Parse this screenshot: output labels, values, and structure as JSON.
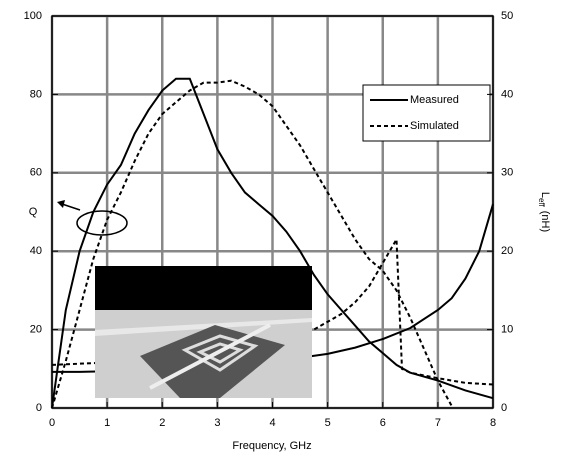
{
  "chart_data": {
    "type": "line",
    "xlabel": "Frequency, GHz",
    "ylabel": "Q",
    "y2label": {
      "main": "L",
      "sub": "eff",
      "unit": "(nH)"
    },
    "xlim": [
      0,
      8
    ],
    "xticks": [
      0,
      1,
      2,
      3,
      4,
      5,
      6,
      7,
      8
    ],
    "ylim": [
      0,
      100
    ],
    "yticks": [
      0,
      20,
      40,
      60,
      80,
      100
    ],
    "y2lim": [
      0,
      50
    ],
    "y2ticks": [
      0,
      10,
      20,
      30,
      40,
      50
    ],
    "grid": true,
    "legend": "upper right",
    "series": [
      {
        "name": "Measured",
        "color": "#000000",
        "dash": false,
        "x": [
          0,
          0.1,
          0.25,
          0.5,
          0.75,
          1,
          1.25,
          1.5,
          1.75,
          2,
          2.25,
          2.5,
          2.75,
          3,
          3.25,
          3.5,
          3.75,
          4,
          4.25,
          4.5,
          4.75,
          5,
          5.25,
          5.5,
          5.75,
          6,
          6.25,
          6.5,
          7,
          7.5,
          8
        ],
        "values": [
          0,
          10,
          25,
          40,
          50,
          57,
          62,
          70,
          76,
          81,
          84,
          84,
          75,
          66,
          60,
          55,
          52,
          49,
          45,
          40,
          34,
          29,
          25,
          21,
          17,
          14,
          11,
          9,
          7,
          4.5,
          2.5
        ]
      },
      {
        "name": "Simulated",
        "color": "#000000",
        "dash": true,
        "x": [
          0,
          0.25,
          0.5,
          0.75,
          1,
          1.25,
          1.5,
          1.75,
          2,
          2.25,
          2.5,
          2.75,
          3,
          3.25,
          3.5,
          3.75,
          4,
          4.25,
          4.5,
          4.75,
          5,
          5.25,
          5.5,
          5.75,
          6,
          6.25,
          6.5,
          6.75,
          7,
          7.25
        ],
        "values": [
          0,
          12,
          25,
          38,
          48,
          55,
          63,
          70,
          75,
          78,
          81,
          83,
          83,
          83.5,
          82,
          80,
          77,
          72,
          67,
          61,
          55,
          49,
          43,
          38,
          35,
          30,
          23,
          15,
          7,
          0.5
        ]
      },
      {
        "color": "#000000",
        "dash": false,
        "axis": "y2",
        "x": [
          0,
          0.5,
          1,
          1.5,
          2,
          2.5,
          3,
          3.5,
          4,
          4.5,
          5,
          5.5,
          6,
          6.5,
          7,
          7.25,
          7.5,
          7.75,
          8
        ],
        "values": [
          4.6,
          4.6,
          4.7,
          4.8,
          5,
          5.2,
          5.5,
          5.8,
          6.1,
          6.4,
          6.9,
          7.7,
          8.8,
          10.2,
          12.5,
          14,
          16.5,
          20,
          26
        ]
      },
      {
        "color": "#000000",
        "dash": true,
        "axis": "y2",
        "x": [
          0,
          1,
          2,
          3,
          4,
          4.5,
          4.75,
          5,
          5.25,
          5.5,
          5.75,
          6,
          6.25,
          6.35,
          6.5,
          7,
          7.5,
          8
        ],
        "values": [
          5.5,
          5.8,
          6.3,
          7,
          8.2,
          9.5,
          10,
          11,
          12,
          13.5,
          15.5,
          18.5,
          21.5,
          5,
          4.5,
          3.8,
          3.2,
          3
        ]
      }
    ]
  }
}
